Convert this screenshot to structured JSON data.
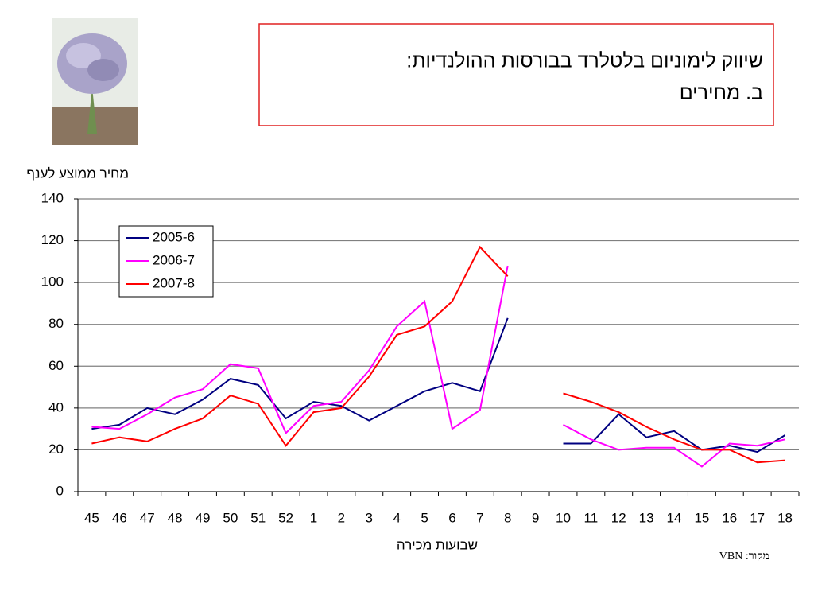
{
  "chart_data": {
    "type": "line",
    "title": "שיווק לימוניום בלטלרד בבורסות ההולנדיות:",
    "subtitle": "ב. מחירים",
    "y_label": "מחיר ממוצע לענף",
    "x_label": "שבועות מכירה",
    "source": "מקור: VBN",
    "categories": [
      "45",
      "46",
      "47",
      "48",
      "49",
      "50",
      "51",
      "52",
      "1",
      "2",
      "3",
      "4",
      "5",
      "6",
      "7",
      "8",
      "9",
      "10",
      "11",
      "12",
      "13",
      "14",
      "15",
      "16",
      "17",
      "18"
    ],
    "series": [
      {
        "name": "2005-6",
        "color": "#000080",
        "values": [
          30,
          32,
          40,
          37,
          44,
          54,
          51,
          35,
          43,
          41,
          34,
          41,
          48,
          52,
          48,
          83,
          null,
          23,
          23,
          37,
          26,
          29,
          20,
          22,
          19,
          27
        ]
      },
      {
        "name": "2006-7",
        "color": "#ff00ff",
        "values": [
          31,
          30,
          37,
          45,
          49,
          61,
          59,
          28,
          41,
          43,
          58,
          79,
          91,
          30,
          39,
          108,
          null,
          32,
          25,
          20,
          21,
          21,
          12,
          23,
          22,
          25
        ]
      },
      {
        "name": "2007-8",
        "color": "#ff0000",
        "values": [
          23,
          26,
          24,
          30,
          35,
          46,
          42,
          22,
          38,
          40,
          55,
          75,
          79,
          91,
          117,
          103,
          null,
          47,
          43,
          38,
          31,
          25,
          20,
          20,
          14,
          15
        ]
      }
    ],
    "ylim": [
      0,
      140
    ],
    "yticks": [
      0,
      20,
      40,
      60,
      80,
      100,
      120,
      140
    ],
    "grid": true,
    "legend": "upper left"
  }
}
